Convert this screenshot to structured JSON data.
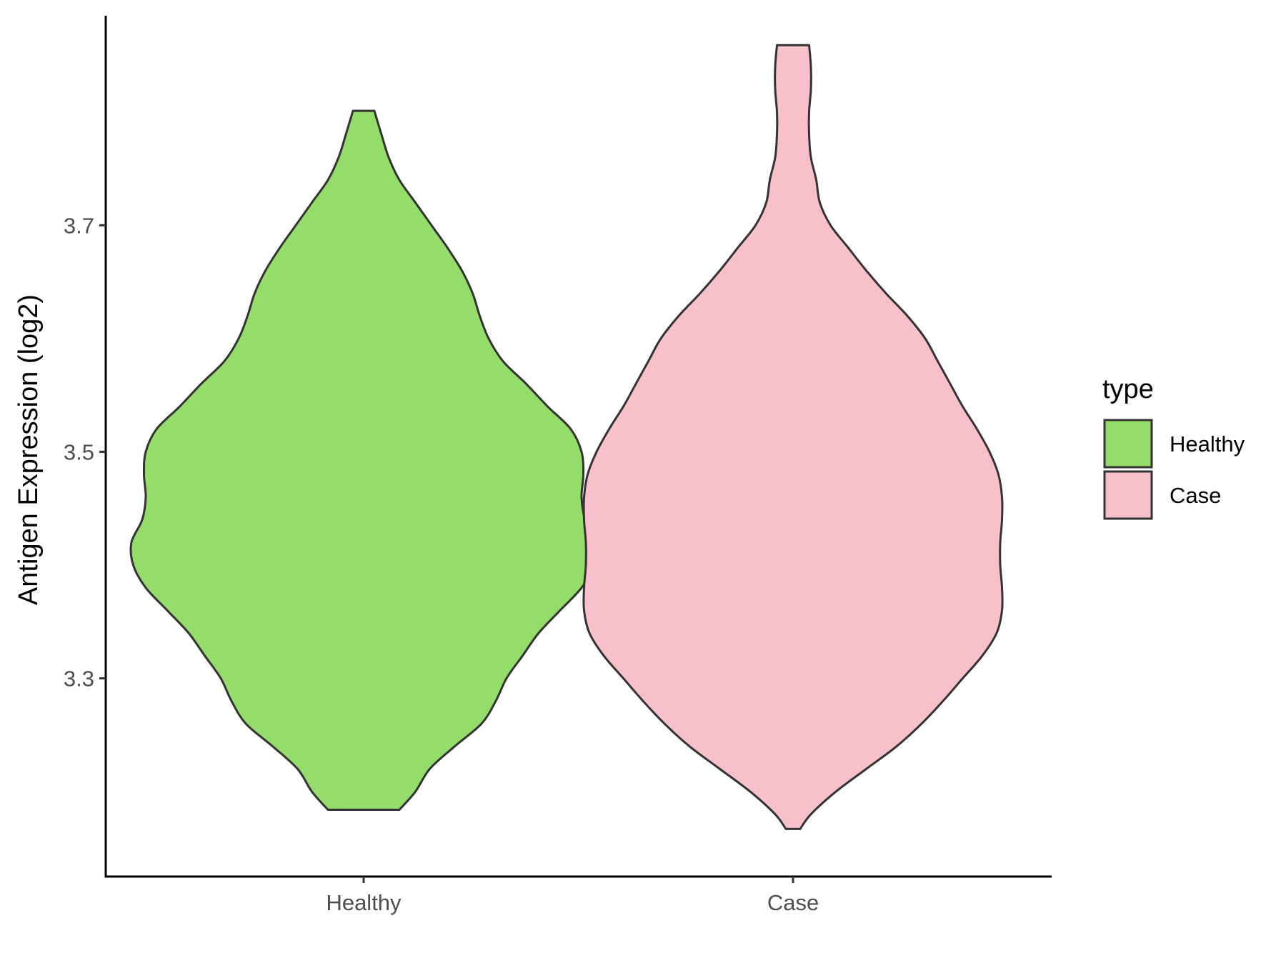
{
  "chart_data": {
    "type": "violin",
    "title": "",
    "xlabel": "",
    "ylabel": "Antigen Expression (log2)",
    "categories": [
      "Healthy",
      "Case"
    ],
    "y_ticks": [
      3.3,
      3.5,
      3.7
    ],
    "y_tick_labels": [
      "3.3",
      "3.5",
      "3.7"
    ],
    "ylim": [
      3.125,
      3.885
    ],
    "grid": false,
    "legend": {
      "title": "type",
      "position": "right",
      "entries": [
        {
          "label": "Healthy",
          "color": "#95DD6B"
        },
        {
          "label": "Case",
          "color": "#F8C0CB"
        }
      ]
    },
    "series": [
      {
        "category": "Healthy",
        "color": "#95DD6B",
        "y_min": 3.184,
        "y_max": 3.801,
        "profile": [
          [
            3.184,
            0.2
          ],
          [
            3.2,
            0.29
          ],
          [
            3.22,
            0.37
          ],
          [
            3.24,
            0.51
          ],
          [
            3.26,
            0.66
          ],
          [
            3.28,
            0.74
          ],
          [
            3.3,
            0.8
          ],
          [
            3.32,
            0.89
          ],
          [
            3.34,
            0.98
          ],
          [
            3.36,
            1.1
          ],
          [
            3.38,
            1.22
          ],
          [
            3.4,
            1.29
          ],
          [
            3.42,
            1.3
          ],
          [
            3.44,
            1.24
          ],
          [
            3.46,
            1.22
          ],
          [
            3.48,
            1.23
          ],
          [
            3.5,
            1.22
          ],
          [
            3.52,
            1.16
          ],
          [
            3.54,
            1.03
          ],
          [
            3.56,
            0.91
          ],
          [
            3.58,
            0.78
          ],
          [
            3.6,
            0.7
          ],
          [
            3.62,
            0.65
          ],
          [
            3.64,
            0.61
          ],
          [
            3.66,
            0.55
          ],
          [
            3.68,
            0.47
          ],
          [
            3.7,
            0.38
          ],
          [
            3.72,
            0.29
          ],
          [
            3.74,
            0.2
          ],
          [
            3.76,
            0.14
          ],
          [
            3.78,
            0.1
          ],
          [
            3.801,
            0.06
          ]
        ]
      },
      {
        "category": "Case",
        "color": "#F8C0CB",
        "y_min": 3.167,
        "y_max": 3.859,
        "profile": [
          [
            3.167,
            0.04
          ],
          [
            3.18,
            0.1
          ],
          [
            3.2,
            0.24
          ],
          [
            3.22,
            0.41
          ],
          [
            3.24,
            0.58
          ],
          [
            3.26,
            0.72
          ],
          [
            3.28,
            0.84
          ],
          [
            3.3,
            0.95
          ],
          [
            3.32,
            1.06
          ],
          [
            3.34,
            1.14
          ],
          [
            3.36,
            1.17
          ],
          [
            3.38,
            1.17
          ],
          [
            3.4,
            1.16
          ],
          [
            3.42,
            1.16
          ],
          [
            3.44,
            1.17
          ],
          [
            3.46,
            1.17
          ],
          [
            3.48,
            1.15
          ],
          [
            3.5,
            1.1
          ],
          [
            3.52,
            1.03
          ],
          [
            3.54,
            0.95
          ],
          [
            3.56,
            0.88
          ],
          [
            3.58,
            0.81
          ],
          [
            3.6,
            0.74
          ],
          [
            3.62,
            0.64
          ],
          [
            3.64,
            0.52
          ],
          [
            3.66,
            0.41
          ],
          [
            3.68,
            0.31
          ],
          [
            3.7,
            0.21
          ],
          [
            3.72,
            0.15
          ],
          [
            3.74,
            0.13
          ],
          [
            3.76,
            0.1
          ],
          [
            3.78,
            0.09
          ],
          [
            3.8,
            0.09
          ],
          [
            3.82,
            0.1
          ],
          [
            3.84,
            0.1
          ],
          [
            3.859,
            0.09
          ]
        ]
      }
    ]
  }
}
